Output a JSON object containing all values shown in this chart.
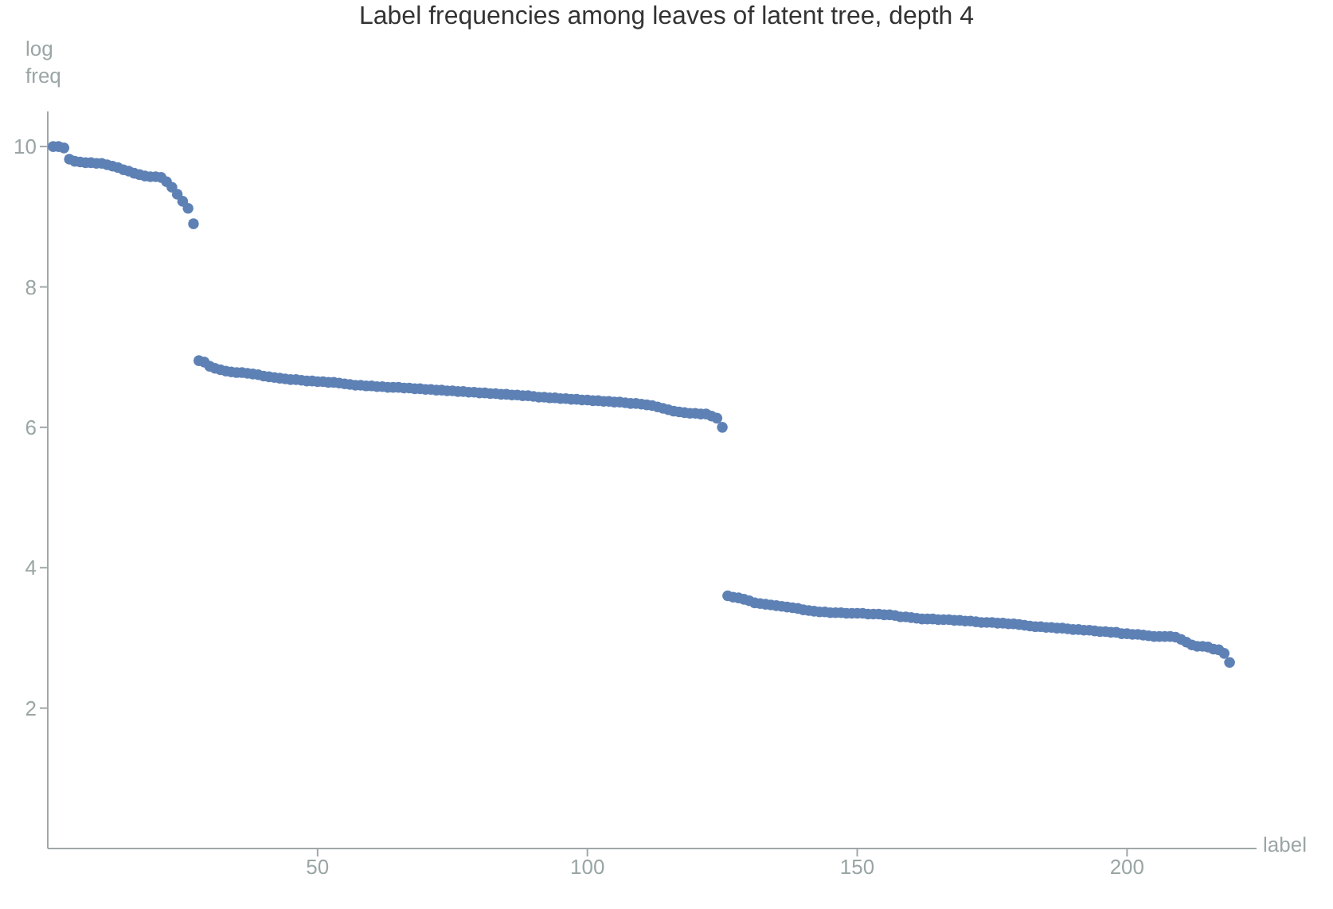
{
  "chart_data": {
    "type": "scatter",
    "title": "Label frequencies among leaves of latent tree, depth 4",
    "xlabel": "label",
    "ylabel": "log freq",
    "marker": "circle",
    "xlim": [
      0,
      224
    ],
    "xticks": [
      50,
      100,
      150,
      200
    ],
    "ylim": [
      0,
      10.5
    ],
    "yticks": [
      2,
      4,
      6,
      8,
      10
    ],
    "series": [
      {
        "color": "#5e81b5",
        "x": [
          1,
          2,
          3,
          4,
          5,
          6,
          7,
          8,
          9,
          10,
          11,
          12,
          13,
          14,
          15,
          16,
          17,
          18,
          19,
          20,
          21,
          22,
          23,
          24,
          25,
          26,
          27,
          28,
          29,
          30,
          31,
          32,
          33,
          34,
          35,
          36,
          37,
          38,
          39,
          40,
          41,
          42,
          43,
          44,
          45,
          46,
          47,
          48,
          49,
          50,
          51,
          52,
          53,
          54,
          55,
          56,
          57,
          58,
          59,
          60,
          61,
          62,
          63,
          64,
          65,
          66,
          67,
          68,
          69,
          70,
          71,
          72,
          73,
          74,
          75,
          76,
          77,
          78,
          79,
          80,
          81,
          82,
          83,
          84,
          85,
          86,
          87,
          88,
          89,
          90,
          91,
          92,
          93,
          94,
          95,
          96,
          97,
          98,
          99,
          100,
          101,
          102,
          103,
          104,
          105,
          106,
          107,
          108,
          109,
          110,
          111,
          112,
          113,
          114,
          115,
          116,
          117,
          118,
          119,
          120,
          121,
          122,
          123,
          124,
          125,
          126,
          127,
          128,
          129,
          130,
          131,
          132,
          133,
          134,
          135,
          136,
          137,
          138,
          139,
          140,
          141,
          142,
          143,
          144,
          145,
          146,
          147,
          148,
          149,
          150,
          151,
          152,
          153,
          154,
          155,
          156,
          157,
          158,
          159,
          160,
          161,
          162,
          163,
          164,
          165,
          166,
          167,
          168,
          169,
          170,
          171,
          172,
          173,
          174,
          175,
          176,
          177,
          178,
          179,
          180,
          181,
          182,
          183,
          184,
          185,
          186,
          187,
          188,
          189,
          190,
          191,
          192,
          193,
          194,
          195,
          196,
          197,
          198,
          199,
          200,
          201,
          202,
          203,
          204,
          205,
          206,
          207,
          208,
          209,
          210,
          211,
          212,
          213,
          214,
          215,
          216,
          217,
          218,
          219
        ],
        "values": [
          10.0,
          10.0,
          9.98,
          9.82,
          9.79,
          9.78,
          9.77,
          9.77,
          9.76,
          9.76,
          9.74,
          9.72,
          9.7,
          9.67,
          9.65,
          9.62,
          9.6,
          9.58,
          9.57,
          9.57,
          9.56,
          9.5,
          9.42,
          9.32,
          9.22,
          9.12,
          8.9,
          6.95,
          6.93,
          6.87,
          6.84,
          6.82,
          6.8,
          6.79,
          6.78,
          6.78,
          6.77,
          6.76,
          6.75,
          6.73,
          6.72,
          6.71,
          6.7,
          6.69,
          6.68,
          6.68,
          6.67,
          6.66,
          6.66,
          6.65,
          6.65,
          6.64,
          6.64,
          6.63,
          6.62,
          6.61,
          6.6,
          6.6,
          6.59,
          6.59,
          6.58,
          6.58,
          6.57,
          6.57,
          6.57,
          6.56,
          6.56,
          6.55,
          6.55,
          6.54,
          6.54,
          6.53,
          6.53,
          6.52,
          6.52,
          6.51,
          6.51,
          6.5,
          6.5,
          6.49,
          6.49,
          6.48,
          6.48,
          6.47,
          6.47,
          6.46,
          6.46,
          6.45,
          6.45,
          6.44,
          6.43,
          6.43,
          6.42,
          6.42,
          6.41,
          6.41,
          6.4,
          6.4,
          6.39,
          6.39,
          6.38,
          6.38,
          6.37,
          6.37,
          6.36,
          6.36,
          6.35,
          6.34,
          6.34,
          6.33,
          6.32,
          6.31,
          6.29,
          6.27,
          6.25,
          6.23,
          6.22,
          6.21,
          6.2,
          6.2,
          6.19,
          6.19,
          6.16,
          6.13,
          6.0,
          3.6,
          3.58,
          3.57,
          3.55,
          3.53,
          3.5,
          3.49,
          3.48,
          3.47,
          3.46,
          3.45,
          3.44,
          3.43,
          3.42,
          3.4,
          3.39,
          3.38,
          3.37,
          3.37,
          3.36,
          3.36,
          3.36,
          3.35,
          3.35,
          3.35,
          3.35,
          3.34,
          3.34,
          3.34,
          3.33,
          3.33,
          3.32,
          3.3,
          3.3,
          3.29,
          3.28,
          3.27,
          3.27,
          3.27,
          3.26,
          3.26,
          3.26,
          3.25,
          3.25,
          3.24,
          3.24,
          3.23,
          3.22,
          3.22,
          3.22,
          3.21,
          3.21,
          3.2,
          3.2,
          3.19,
          3.18,
          3.17,
          3.16,
          3.16,
          3.15,
          3.15,
          3.14,
          3.14,
          3.13,
          3.12,
          3.12,
          3.11,
          3.11,
          3.1,
          3.09,
          3.09,
          3.08,
          3.08,
          3.06,
          3.06,
          3.05,
          3.05,
          3.04,
          3.03,
          3.02,
          3.02,
          3.02,
          3.02,
          3.01,
          2.98,
          2.94,
          2.9,
          2.88,
          2.88,
          2.87,
          2.84,
          2.83,
          2.78,
          2.65
        ]
      }
    ]
  }
}
